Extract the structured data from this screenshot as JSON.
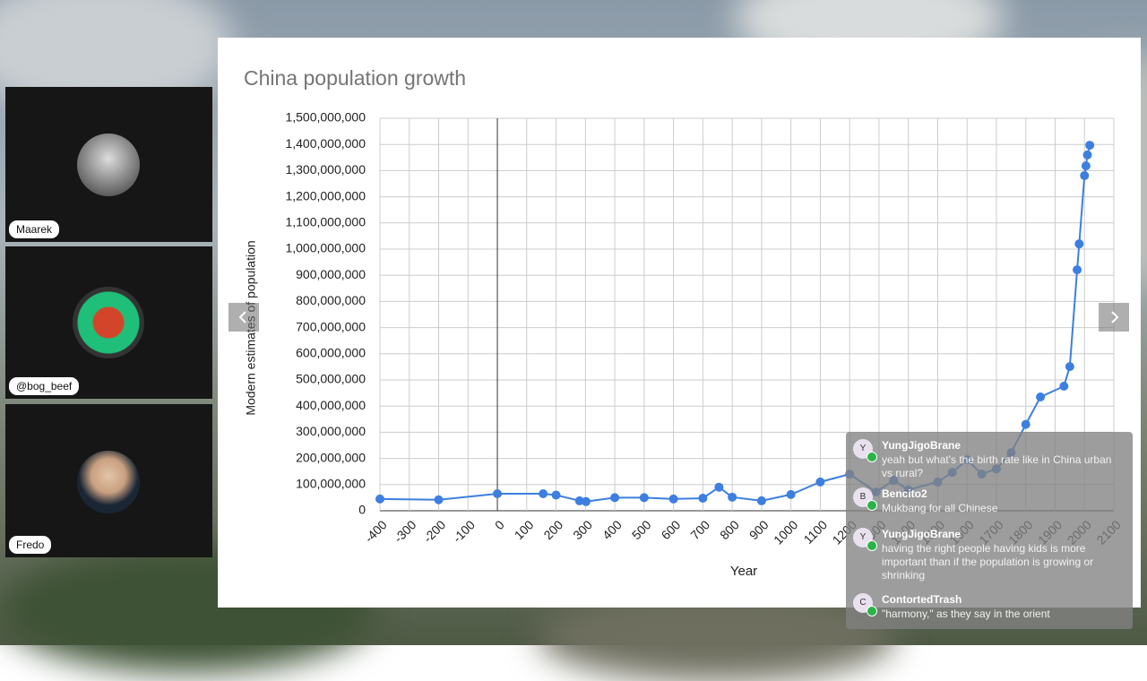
{
  "participants": [
    {
      "name": "Maarek"
    },
    {
      "name": "@bog_beef"
    },
    {
      "name": "Fredo"
    }
  ],
  "chart_data": {
    "type": "line",
    "title": "China population growth",
    "xlabel": "Year",
    "ylabel": "Modern estimates of population",
    "x": [
      -400,
      -200,
      0,
      156,
      200,
      280,
      302,
      400,
      500,
      600,
      700,
      755,
      800,
      900,
      1000,
      1100,
      1200,
      1290,
      1350,
      1400,
      1500,
      1550,
      1600,
      1650,
      1700,
      1750,
      1800,
      1850,
      1930,
      1950,
      1975,
      1982,
      2000,
      2005,
      2010,
      2018
    ],
    "series": [
      {
        "name": "Population",
        "color": "#3d7fe0",
        "values": [
          45000000,
          42000000,
          65000000,
          65000000,
          60000000,
          38000000,
          35000000,
          50000000,
          50000000,
          45000000,
          48000000,
          90000000,
          52000000,
          38000000,
          62000000,
          110000000,
          140000000,
          72000000,
          116000000,
          80000000,
          110000000,
          147000000,
          195000000,
          140000000,
          160000000,
          222000000,
          330000000,
          435000000,
          476000000,
          551000000,
          921000000,
          1020000000,
          1281000000,
          1318000000,
          1360000000,
          1397000000
        ]
      }
    ],
    "xlim": [
      -400,
      2100
    ],
    "xticks": [
      -400,
      -300,
      -200,
      -100,
      0,
      100,
      200,
      300,
      400,
      500,
      600,
      700,
      800,
      900,
      1000,
      1100,
      1200,
      1300,
      1400,
      1500,
      1600,
      1700,
      1800,
      1900,
      2000,
      2100
    ],
    "ylim": [
      0,
      1500000000
    ],
    "yticks": [
      0,
      {
        "value": 100000000,
        "label": "100,000,000"
      },
      {
        "value": 200000000,
        "label": "200,000,000"
      },
      {
        "value": 300000000,
        "label": "300,000,000"
      },
      {
        "value": 400000000,
        "label": "400,000,000"
      },
      {
        "value": 500000000,
        "label": "500,000,000"
      },
      {
        "value": 600000000,
        "label": "600,000,000"
      },
      {
        "value": 700000000,
        "label": "700,000,000"
      },
      {
        "value": 800000000,
        "label": "800,000,000"
      },
      {
        "value": 900000000,
        "label": "900,000,000"
      },
      {
        "value": 1000000000,
        "label": "1,000,000,000"
      },
      {
        "value": 1100000000,
        "label": "1,100,000,000"
      },
      {
        "value": 1200000000,
        "label": "1,200,000,000"
      },
      {
        "value": 1300000000,
        "label": "1,300,000,000"
      },
      {
        "value": 1400000000,
        "label": "1,400,000,000"
      },
      {
        "value": 1500000000,
        "label": "1,500,000,000"
      }
    ],
    "grid": true
  },
  "chat": [
    {
      "initial": "Y",
      "author": "YungJigoBrane",
      "text": "yeah but what's the birth rate like in China urban vs rural?"
    },
    {
      "initial": "B",
      "author": "Bencito2",
      "text": "Mukbang for all Chinese"
    },
    {
      "initial": "Y",
      "author": "YungJigoBrane",
      "text": "having the right people having kids is more important than if the population is growing or shrinking"
    },
    {
      "initial": "C",
      "author": "ContortedTrash",
      "text": "\"harmony,\" as they say in the orient"
    }
  ]
}
